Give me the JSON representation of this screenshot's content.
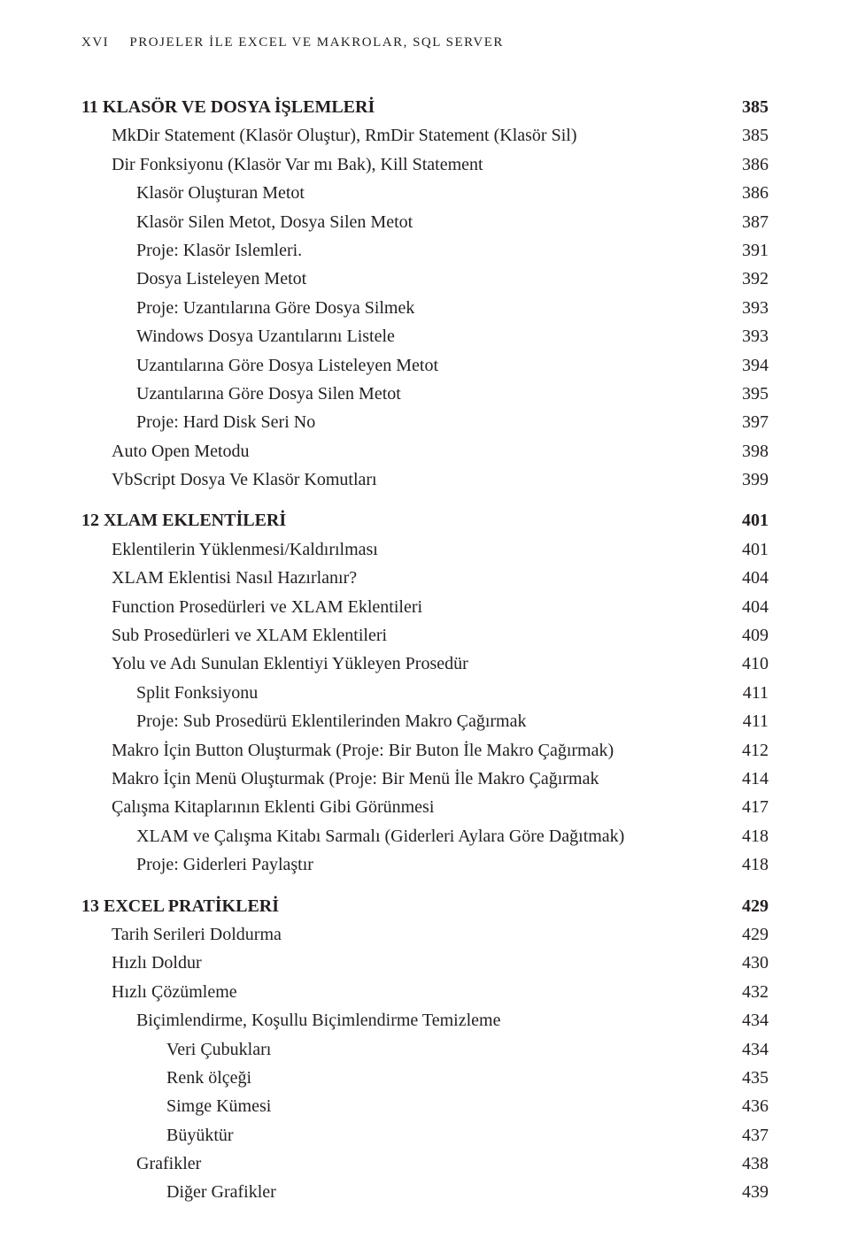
{
  "runningHead": {
    "pageNumeral": "XVI",
    "title": "PROJELER İLE EXCEL VE MAKROLAR, SQL SERVER"
  },
  "toc": [
    {
      "level": "chapter",
      "label": "11 KLASÖR VE DOSYA İŞLEMLERİ",
      "page": "385"
    },
    {
      "level": "lvl1",
      "label": "MkDir Statement (Klasör Oluştur), RmDir Statement (Klasör Sil)",
      "page": "385"
    },
    {
      "level": "lvl1",
      "label": "Dir Fonksiyonu (Klasör Var mı Bak), Kill Statement",
      "page": "386"
    },
    {
      "level": "lvl2",
      "label": "Klasör Oluşturan Metot",
      "page": "386"
    },
    {
      "level": "lvl2",
      "label": "Klasör Silen Metot, Dosya Silen Metot",
      "page": "387"
    },
    {
      "level": "lvl2",
      "label": "Proje: Klasör Islemleri.",
      "page": "391"
    },
    {
      "level": "lvl2",
      "label": "Dosya Listeleyen Metot",
      "page": "392"
    },
    {
      "level": "lvl2",
      "label": "Proje: Uzantılarına Göre Dosya Silmek",
      "page": "393"
    },
    {
      "level": "lvl2",
      "label": "Windows Dosya Uzantılarını Listele",
      "page": "393"
    },
    {
      "level": "lvl2",
      "label": "Uzantılarına Göre Dosya Listeleyen Metot",
      "page": "394"
    },
    {
      "level": "lvl2",
      "label": "Uzantılarına Göre Dosya Silen Metot",
      "page": "395"
    },
    {
      "level": "lvl2",
      "label": "Proje: Hard Disk Seri No",
      "page": "397"
    },
    {
      "level": "lvl1",
      "label": "Auto Open Metodu",
      "page": "398"
    },
    {
      "level": "lvl1",
      "label": "VbScript Dosya Ve Klasör Komutları",
      "page": "399"
    },
    {
      "level": "chapter",
      "label": "12 XLAM EKLENTİLERİ",
      "page": "401"
    },
    {
      "level": "lvl1",
      "label": "Eklentilerin Yüklenmesi/Kaldırılması",
      "page": "401"
    },
    {
      "level": "lvl1",
      "label": "XLAM Eklentisi Nasıl Hazırlanır?",
      "page": "404"
    },
    {
      "level": "lvl1",
      "label": "Function Prosedürleri ve XLAM Eklentileri",
      "page": "404"
    },
    {
      "level": "lvl1",
      "label": "Sub Prosedürleri ve XLAM Eklentileri",
      "page": "409"
    },
    {
      "level": "lvl1",
      "label": "Yolu ve Adı Sunulan Eklentiyi Yükleyen Prosedür",
      "page": "410"
    },
    {
      "level": "lvl2",
      "label": "Split Fonksiyonu",
      "page": "411"
    },
    {
      "level": "lvl2",
      "label": "Proje: Sub Prosedürü Eklentilerinden Makro Çağırmak",
      "page": "411"
    },
    {
      "level": "lvl1",
      "label": "Makro İçin Button Oluşturmak (Proje: Bir Buton İle Makro Çağırmak)",
      "page": "412"
    },
    {
      "level": "lvl1",
      "label": "Makro İçin Menü Oluşturmak (Proje: Bir Menü İle Makro Çağırmak",
      "page": "414"
    },
    {
      "level": "lvl1",
      "label": "Çalışma Kitaplarının Eklenti Gibi Görünmesi",
      "page": "417"
    },
    {
      "level": "lvl2",
      "label": "XLAM ve Çalışma Kitabı Sarmalı (Giderleri Aylara Göre Dağıtmak)",
      "page": "418"
    },
    {
      "level": "lvl2",
      "label": "Proje: Giderleri Paylaştır",
      "page": "418"
    },
    {
      "level": "chapter",
      "label": "13 EXCEL PRATİKLERİ",
      "page": "429"
    },
    {
      "level": "lvl1",
      "label": "Tarih Serileri Doldurma",
      "page": "429"
    },
    {
      "level": "lvl1",
      "label": "Hızlı Doldur",
      "page": "430"
    },
    {
      "level": "lvl1",
      "label": "Hızlı Çözümleme",
      "page": "432"
    },
    {
      "level": "lvl2",
      "label": "Biçimlendirme, Koşullu Biçimlendirme Temizleme",
      "page": "434"
    },
    {
      "level": "lvl3",
      "label": "Veri Çubukları",
      "page": "434"
    },
    {
      "level": "lvl3",
      "label": "Renk ölçeği",
      "page": "435"
    },
    {
      "level": "lvl3",
      "label": "Simge Kümesi",
      "page": "436"
    },
    {
      "level": "lvl3",
      "label": "Büyüktür",
      "page": "437"
    },
    {
      "level": "lvl2",
      "label": "Grafikler",
      "page": "438"
    },
    {
      "level": "lvl3",
      "label": "Diğer Grafikler",
      "page": "439"
    }
  ]
}
